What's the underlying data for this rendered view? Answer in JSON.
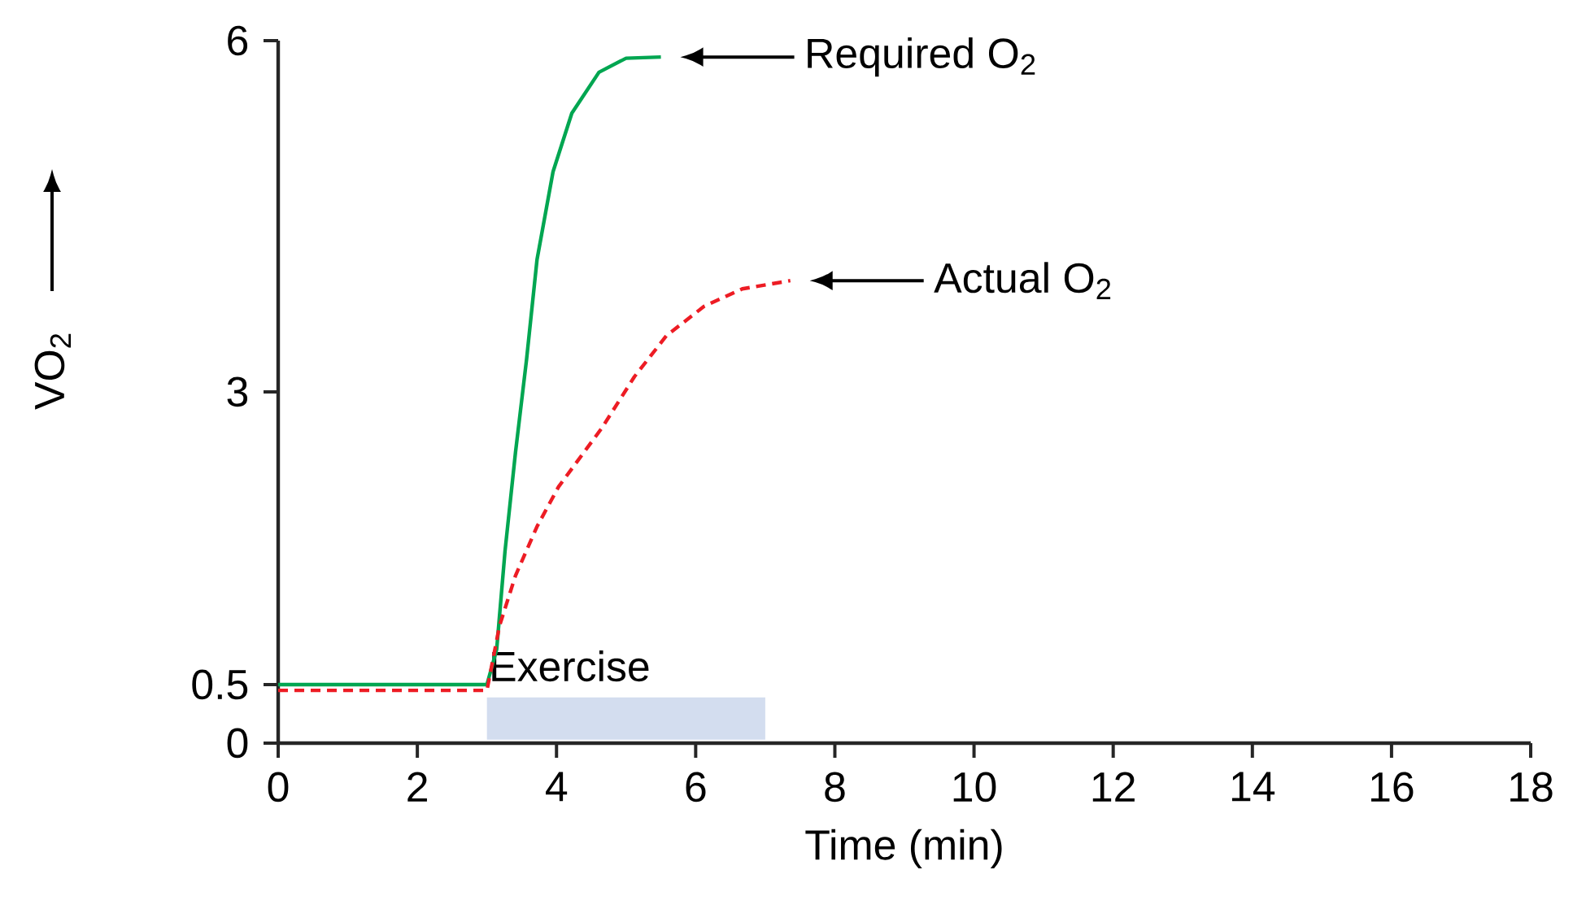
{
  "chart_data": {
    "type": "line",
    "xlabel": "Time (min)",
    "ylabel": "VO$_{2}$",
    "xlim": [
      0,
      18
    ],
    "xticks": [
      0,
      2,
      4,
      6,
      8,
      10,
      12,
      14,
      16,
      18
    ],
    "ylim": [
      0,
      6
    ],
    "yticks": [
      0,
      0.5,
      3,
      6
    ],
    "grid": false,
    "marker": "none",
    "series": [
      {
        "color": "#00a651",
        "line_style": "solid",
        "x": [
          0,
          3.0,
          3.14,
          3.26,
          3.41,
          3.57,
          3.72,
          3.95,
          4.22,
          4.61,
          5.0,
          5.5
        ],
        "values": [
          0.5,
          0.5,
          0.8,
          1.64,
          2.48,
          3.28,
          4.13,
          4.88,
          5.38,
          5.73,
          5.85,
          5.86
        ]
      },
      {
        "color": "#ed1c24",
        "line_style": "dashed",
        "x": [
          0,
          3.0,
          3.18,
          3.41,
          3.72,
          4.03,
          4.34,
          4.65,
          5.12,
          5.58,
          6.12,
          6.67,
          7.36
        ],
        "values": [
          0.45,
          0.45,
          1.0,
          1.43,
          1.85,
          2.19,
          2.44,
          2.69,
          3.13,
          3.48,
          3.73,
          3.88,
          3.95
        ]
      }
    ],
    "bands": [
      {
        "axis": "x",
        "from": 3,
        "to": 7,
        "label": "Exercise",
        "color": "#d3ddef"
      }
    ],
    "annotations": [
      "Required O$_{2}$",
      "Actual O$_{2}$"
    ]
  }
}
